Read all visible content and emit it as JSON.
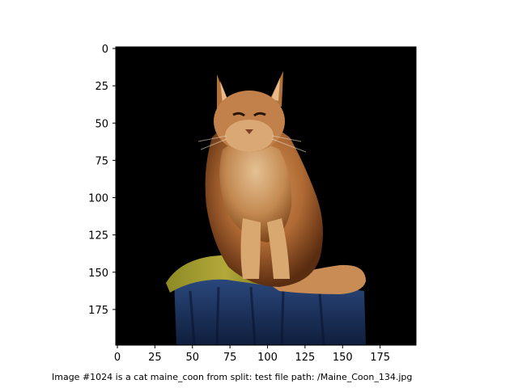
{
  "image": {
    "subject": "cat",
    "breed": "maine_coon",
    "background_color": "#000000",
    "x_ticks": [
      "0",
      "25",
      "50",
      "75",
      "100",
      "125",
      "150",
      "175"
    ],
    "y_ticks": [
      "0",
      "25",
      "50",
      "75",
      "100",
      "125",
      "150",
      "175"
    ],
    "x_range": [
      0,
      200
    ],
    "y_range": [
      0,
      200
    ]
  },
  "caption": "Image #1024 is a cat maine_coon from split: test file path: /Maine_Coon_134.jpg"
}
